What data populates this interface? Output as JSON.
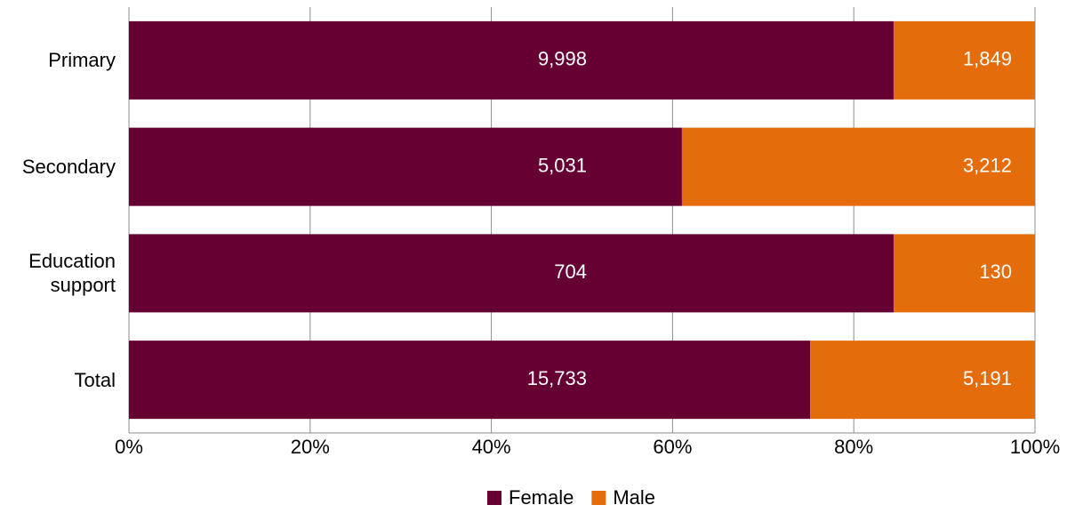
{
  "chart_data": {
    "type": "bar",
    "orientation": "horizontal",
    "stacked": "percent",
    "categories": [
      "Primary",
      "Secondary",
      "Education support",
      "Total"
    ],
    "series": [
      {
        "name": "Female",
        "color": "#660033",
        "values": [
          9998,
          5031,
          704,
          15733
        ],
        "value_labels": [
          "9,998",
          "5,031",
          "704",
          "15,733"
        ]
      },
      {
        "name": "Male",
        "color": "#e46c0a",
        "values": [
          1849,
          3212,
          130,
          5191
        ],
        "value_labels": [
          "1,849",
          "3,212",
          "130",
          "5,191"
        ]
      }
    ],
    "xlim": [
      0,
      100
    ],
    "xticks": [
      {
        "value": 0,
        "label": "0%"
      },
      {
        "value": 20,
        "label": "20%"
      },
      {
        "value": 40,
        "label": "40%"
      },
      {
        "value": 60,
        "label": "60%"
      },
      {
        "value": 80,
        "label": "80%"
      },
      {
        "value": 100,
        "label": "100%"
      }
    ],
    "grid": true,
    "legend": "bottom"
  }
}
